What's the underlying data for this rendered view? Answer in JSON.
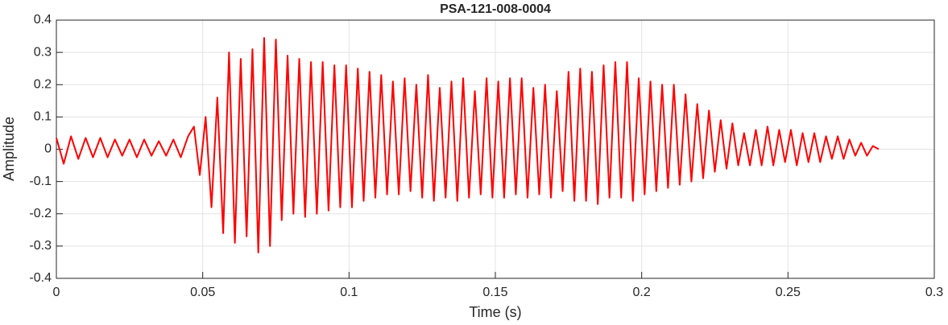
{
  "chart_data": {
    "type": "line",
    "title": "PSA-121-008-0004",
    "xlabel": "Time (s)",
    "ylabel": "Amplitude",
    "color": "#ff0000",
    "grid": true,
    "xlim": [
      0,
      0.3
    ],
    "xticks": [
      0,
      0.05,
      0.1,
      0.15,
      0.2,
      0.25,
      0.3
    ],
    "ylim": [
      -0.4,
      0.4
    ],
    "yticks": [
      -0.4,
      -0.3,
      -0.2,
      -0.1,
      0,
      0.1,
      0.2,
      0.3,
      0.4
    ],
    "x": [
      0,
      0.0025,
      0.005,
      0.0075,
      0.01,
      0.0125,
      0.015,
      0.0175,
      0.02,
      0.0225,
      0.025,
      0.0275,
      0.03,
      0.0325,
      0.035,
      0.0375,
      0.04,
      0.0425,
      0.045,
      0.047,
      0.049,
      0.051,
      0.053,
      0.055,
      0.057,
      0.059,
      0.061,
      0.063,
      0.065,
      0.067,
      0.069,
      0.071,
      0.073,
      0.075,
      0.077,
      0.079,
      0.081,
      0.083,
      0.085,
      0.087,
      0.089,
      0.091,
      0.093,
      0.095,
      0.097,
      0.099,
      0.101,
      0.103,
      0.105,
      0.107,
      0.109,
      0.111,
      0.113,
      0.115,
      0.117,
      0.119,
      0.121,
      0.123,
      0.125,
      0.127,
      0.129,
      0.131,
      0.133,
      0.135,
      0.137,
      0.139,
      0.141,
      0.143,
      0.145,
      0.147,
      0.149,
      0.151,
      0.153,
      0.155,
      0.157,
      0.159,
      0.161,
      0.163,
      0.165,
      0.167,
      0.169,
      0.171,
      0.173,
      0.175,
      0.177,
      0.179,
      0.181,
      0.183,
      0.185,
      0.187,
      0.189,
      0.191,
      0.193,
      0.195,
      0.197,
      0.199,
      0.201,
      0.203,
      0.205,
      0.207,
      0.209,
      0.211,
      0.213,
      0.215,
      0.217,
      0.219,
      0.221,
      0.223,
      0.225,
      0.227,
      0.229,
      0.231,
      0.233,
      0.235,
      0.237,
      0.239,
      0.241,
      0.243,
      0.245,
      0.247,
      0.249,
      0.251,
      0.253,
      0.255,
      0.257,
      0.259,
      0.261,
      0.263,
      0.265,
      0.267,
      0.269,
      0.271,
      0.273,
      0.275,
      0.277,
      0.279,
      0.281
    ],
    "values": [
      0.035,
      -0.045,
      0.04,
      -0.03,
      0.035,
      -0.025,
      0.035,
      -0.025,
      0.03,
      -0.02,
      0.03,
      -0.025,
      0.03,
      -0.02,
      0.025,
      -0.02,
      0.03,
      -0.025,
      0.04,
      0.07,
      -0.08,
      0.1,
      -0.18,
      0.16,
      -0.26,
      0.3,
      -0.29,
      0.28,
      -0.27,
      0.31,
      -0.32,
      0.345,
      -0.3,
      0.34,
      -0.22,
      0.29,
      -0.2,
      0.28,
      -0.21,
      0.27,
      -0.2,
      0.27,
      -0.19,
      0.26,
      -0.18,
      0.26,
      -0.18,
      0.25,
      -0.16,
      0.24,
      -0.15,
      0.23,
      -0.14,
      0.21,
      -0.14,
      0.22,
      -0.13,
      0.2,
      -0.15,
      0.23,
      -0.16,
      0.19,
      -0.15,
      0.21,
      -0.16,
      0.22,
      -0.15,
      0.18,
      -0.14,
      0.22,
      -0.15,
      0.21,
      -0.15,
      0.22,
      -0.14,
      0.22,
      -0.15,
      0.19,
      -0.14,
      0.2,
      -0.15,
      0.18,
      -0.13,
      0.24,
      -0.16,
      0.25,
      -0.16,
      0.24,
      -0.17,
      0.26,
      -0.15,
      0.27,
      -0.15,
      0.27,
      -0.16,
      0.22,
      -0.14,
      0.21,
      -0.13,
      0.2,
      -0.12,
      0.2,
      -0.11,
      0.17,
      -0.1,
      0.14,
      -0.09,
      0.12,
      -0.07,
      0.09,
      -0.06,
      0.08,
      -0.05,
      0.05,
      -0.05,
      0.06,
      -0.05,
      0.07,
      -0.05,
      0.06,
      -0.04,
      0.06,
      -0.05,
      0.05,
      -0.04,
      0.05,
      -0.04,
      0.04,
      -0.03,
      0.04,
      -0.03,
      0.03,
      -0.02,
      0.02,
      -0.02,
      0.01,
      0
    ]
  }
}
